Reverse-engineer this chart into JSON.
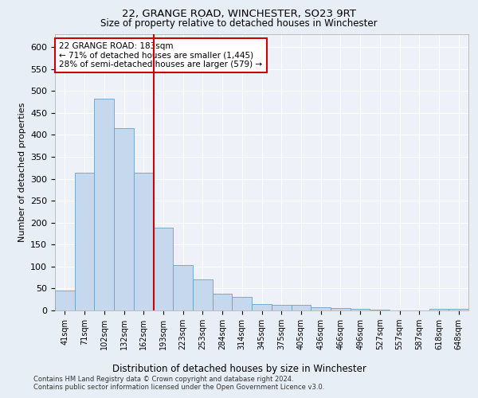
{
  "title1": "22, GRANGE ROAD, WINCHESTER, SO23 9RT",
  "title2": "Size of property relative to detached houses in Winchester",
  "xlabel": "Distribution of detached houses by size in Winchester",
  "ylabel": "Number of detached properties",
  "categories": [
    "41sqm",
    "71sqm",
    "102sqm",
    "132sqm",
    "162sqm",
    "193sqm",
    "223sqm",
    "253sqm",
    "284sqm",
    "314sqm",
    "345sqm",
    "375sqm",
    "405sqm",
    "436sqm",
    "466sqm",
    "496sqm",
    "527sqm",
    "557sqm",
    "587sqm",
    "618sqm",
    "648sqm"
  ],
  "values": [
    46,
    313,
    482,
    415,
    313,
    188,
    103,
    70,
    38,
    30,
    14,
    12,
    12,
    8,
    6,
    4,
    1,
    0,
    0,
    4,
    3
  ],
  "bar_color": "#c5d8ed",
  "bar_edge_color": "#6aa0c7",
  "vline_x": 4.5,
  "vline_color": "#cc0000",
  "annotation_text": "22 GRANGE ROAD: 183sqm\n← 71% of detached houses are smaller (1,445)\n28% of semi-detached houses are larger (579) →",
  "annotation_box_color": "#cc0000",
  "background_color": "#e8eef5",
  "plot_bg_color": "#eef2f8",
  "footer1": "Contains HM Land Registry data © Crown copyright and database right 2024.",
  "footer2": "Contains public sector information licensed under the Open Government Licence v3.0.",
  "ylim": [
    0,
    630
  ],
  "yticks": [
    0,
    50,
    100,
    150,
    200,
    250,
    300,
    350,
    400,
    450,
    500,
    550,
    600
  ]
}
